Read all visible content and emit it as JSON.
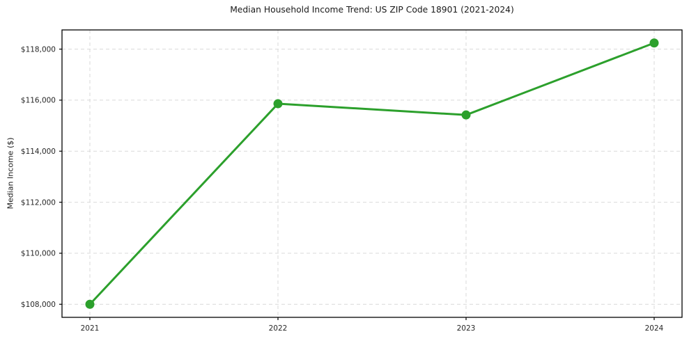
{
  "chart_data": {
    "type": "line",
    "title": "Median Household Income Trend: US ZIP Code 18901 (2021-2024)",
    "xlabel": "",
    "ylabel": "Median Income ($)",
    "x": [
      2021,
      2022,
      2023,
      2024
    ],
    "series": [
      {
        "name": "Median Household Income",
        "values": [
          108000,
          115860,
          115420,
          118240
        ]
      }
    ],
    "yticks": [
      108000,
      110000,
      112000,
      114000,
      116000,
      118000
    ],
    "ytick_labels": [
      "$108,000",
      "$110,000",
      "$112,000",
      "$114,000",
      "$116,000",
      "$118,000"
    ],
    "xtick_labels": [
      "2021",
      "2022",
      "2023",
      "2024"
    ],
    "ylim": [
      107488,
      118752
    ],
    "grid": true,
    "legend": "none",
    "colors": {
      "line": "#2ca02c",
      "marker": "#2ca02c",
      "grid": "#d9d9d9",
      "spine": "#000000",
      "text": "#1a1a1a",
      "background": "#ffffff"
    }
  }
}
